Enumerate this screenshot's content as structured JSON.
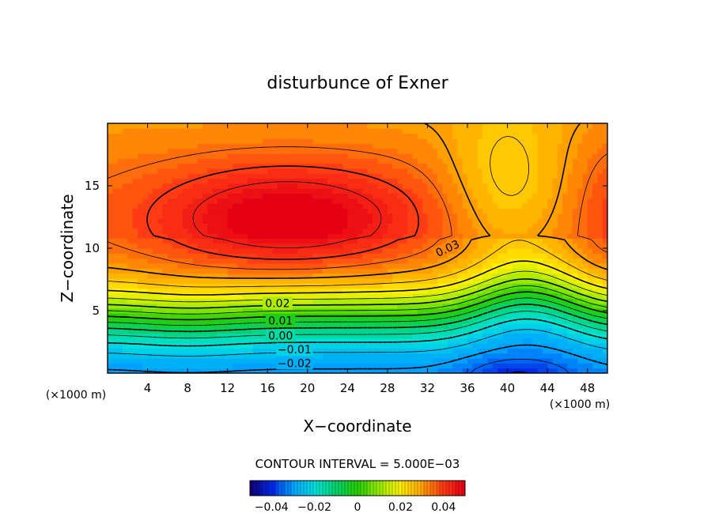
{
  "chart_data": {
    "type": "contour",
    "title": "disturbunce of Exner",
    "xlabel": "X−coordinate",
    "ylabel": "Z−coordinate",
    "x_unit": "(×1000 m)",
    "y_unit": "(×1000 m)",
    "xlim": [
      0,
      50
    ],
    "ylim": [
      0,
      20
    ],
    "xticks": [
      "4",
      "8",
      "12",
      "16",
      "20",
      "24",
      "28",
      "32",
      "36",
      "40",
      "44",
      "48"
    ],
    "yticks": [
      "5",
      "10",
      "15"
    ],
    "contour_interval_text": "CONTOUR INTERVAL = 5.000E−03",
    "contour_labels": [
      {
        "text": "0.03",
        "x": 34,
        "z": 10
      },
      {
        "text": "0.02",
        "x": 17,
        "z": 5.6
      },
      {
        "text": "0.01",
        "x": 17.3,
        "z": 4.2
      },
      {
        "text": "0.00",
        "x": 17.3,
        "z": 3.0
      },
      {
        "text": "−0.01",
        "x": 18.7,
        "z": 1.9
      },
      {
        "text": "−0.02",
        "x": 18.7,
        "z": 0.8
      }
    ],
    "field_description": {
      "max_value": 0.045,
      "max_center": [
        18,
        12.5
      ],
      "min_value": -0.045,
      "min_center": [
        41,
        0
      ],
      "range": [
        -0.05,
        0.05
      ]
    },
    "colorbar": {
      "ticks": [
        "−0.04",
        "−0.02",
        "0",
        "0.02",
        "0.04"
      ],
      "range": [
        -0.05,
        0.05
      ]
    }
  }
}
